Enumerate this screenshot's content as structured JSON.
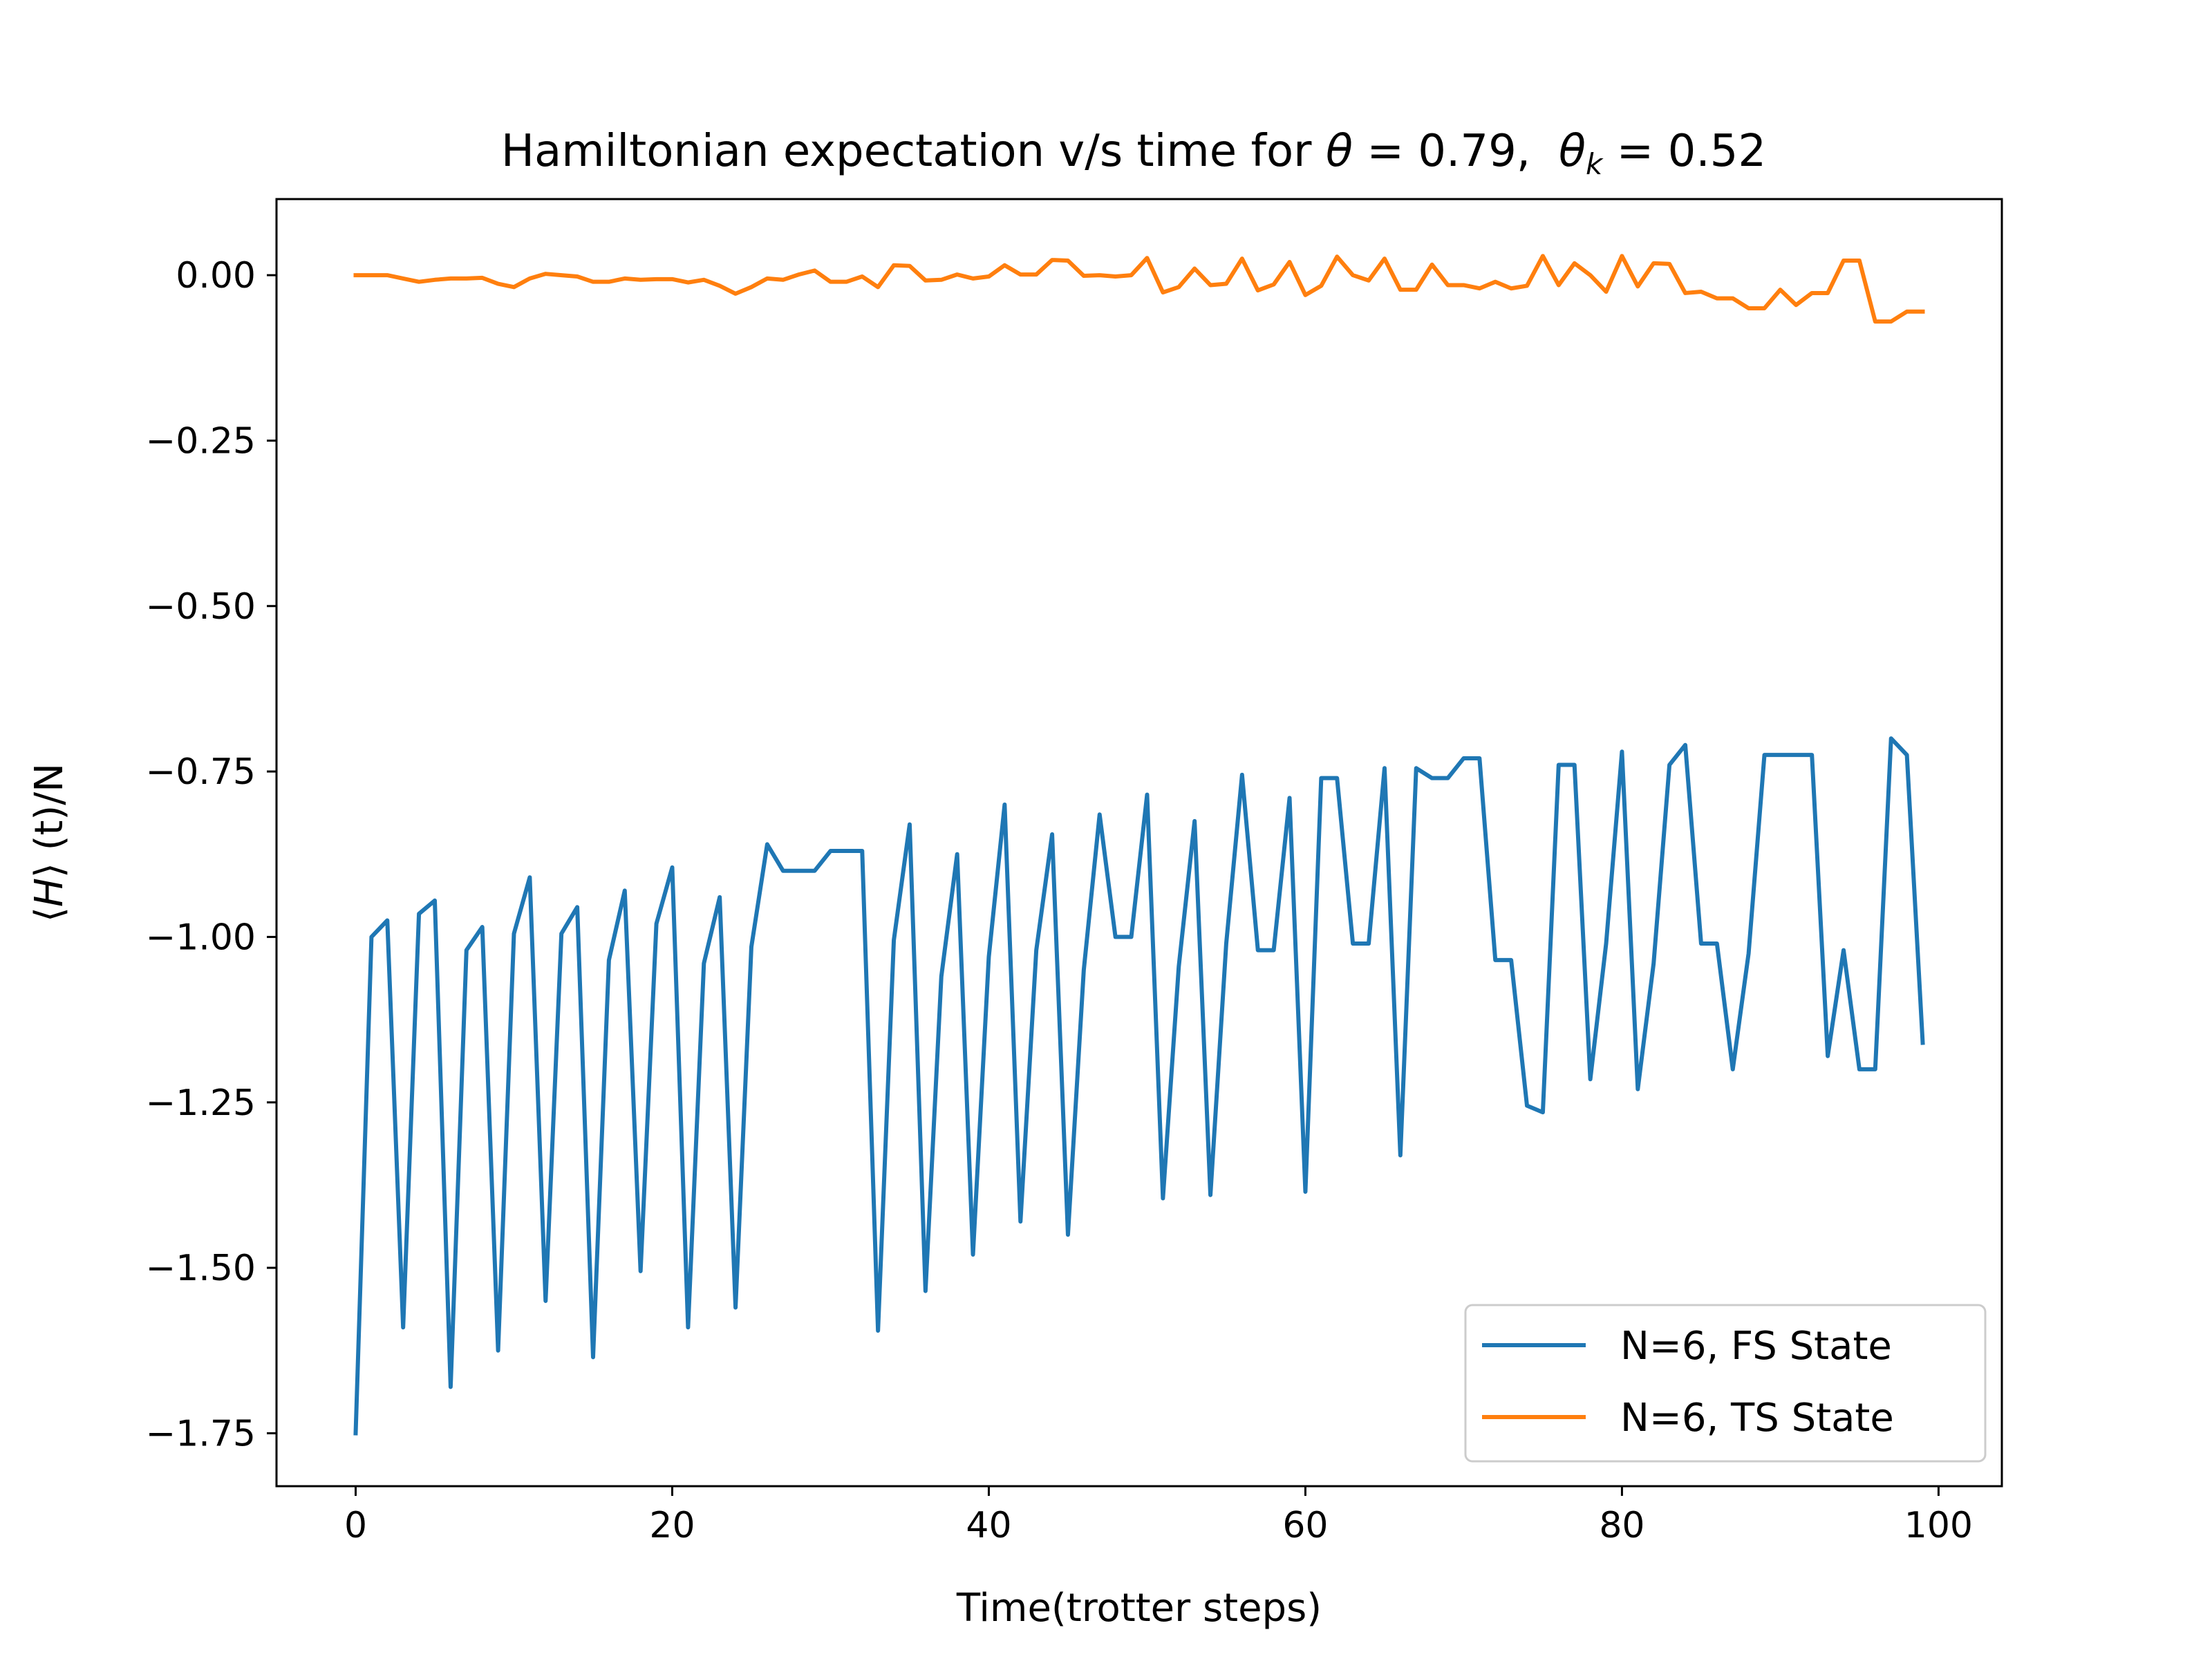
{
  "chart_data": {
    "type": "line",
    "title_parts": {
      "prefix": "Hamiltonian expectation v/s time for ",
      "theta_symbol": "θ",
      "equals": " = ",
      "theta_value": "0.79,",
      "thetak_symbol": "θ",
      "thetak_sub": "k",
      "thetak_value": "0.52"
    },
    "xlabel": "Time(trotter steps)",
    "ylabel": "⟨H⟩ (t)/N",
    "ylabel_parts": {
      "open": "⟨",
      "symbol": "H",
      "close": "⟩",
      "rest": " (t)/N"
    },
    "xlim": [
      -5,
      104
    ],
    "ylim": [
      -1.83,
      0.115
    ],
    "x_ticks": [
      0,
      20,
      40,
      60,
      80,
      100
    ],
    "x_tick_labels": [
      "0",
      "20",
      "40",
      "60",
      "80",
      "100"
    ],
    "y_ticks": [
      0.0,
      -0.25,
      -0.5,
      -0.75,
      -1.0,
      -1.25,
      -1.5,
      -1.75
    ],
    "y_tick_labels": [
      "0.00",
      "−0.25",
      "−0.50",
      "−0.75",
      "−1.00",
      "−1.25",
      "−1.50",
      "−1.75"
    ],
    "grid": false,
    "legend_position": "lower-right",
    "series": [
      {
        "name": "N=6, FS State",
        "color": "#1f77b4",
        "x_start": 0,
        "x_step": 1,
        "values": [
          -1.75,
          -1.0,
          -0.975,
          -1.59,
          -0.965,
          -0.945,
          -1.68,
          -1.02,
          -0.985,
          -1.625,
          -0.995,
          -0.91,
          -1.55,
          -0.995,
          -0.955,
          -1.635,
          -1.035,
          -0.93,
          -1.505,
          -0.98,
          -0.895,
          -1.59,
          -1.04,
          -0.94,
          -1.56,
          -1.015,
          -0.86,
          -0.9,
          -0.9,
          -0.9,
          -0.87,
          -0.87,
          -0.87,
          -1.595,
          -1.005,
          -0.83,
          -1.535,
          -1.06,
          -0.875,
          -1.48,
          -1.03,
          -0.8,
          -1.43,
          -1.02,
          -0.845,
          -1.45,
          -1.05,
          -0.815,
          -1.0,
          -1.0,
          -0.785,
          -1.395,
          -1.045,
          -0.825,
          -1.39,
          -1.01,
          -0.755,
          -1.02,
          -1.02,
          -0.79,
          -1.385,
          -0.76,
          -0.76,
          -1.01,
          -1.01,
          -0.745,
          -1.33,
          -0.745,
          -0.76,
          -0.76,
          -0.73,
          -0.73,
          -1.035,
          -1.035,
          -1.255,
          -1.265,
          -0.74,
          -0.74,
          -1.215,
          -1.01,
          -0.72,
          -1.23,
          -1.04,
          -0.74,
          -0.71,
          -1.01,
          -1.01,
          -1.2,
          -1.025,
          -0.725,
          -0.725,
          -0.725,
          -0.725,
          -1.18,
          -1.02,
          -1.2,
          -1.2,
          -0.7,
          -0.725,
          -1.16
        ]
      },
      {
        "name": "N=6, TS State",
        "color": "#ff7f0e",
        "x_start": 0,
        "x_step": 1,
        "values": [
          0.0,
          0.0,
          0.0,
          -0.005,
          -0.01,
          -0.007,
          -0.005,
          -0.005,
          -0.004,
          -0.013,
          -0.018,
          -0.005,
          0.002,
          0.0,
          -0.002,
          -0.01,
          -0.01,
          -0.005,
          -0.007,
          -0.006,
          -0.006,
          -0.011,
          -0.007,
          -0.016,
          -0.028,
          -0.018,
          -0.005,
          -0.007,
          0.001,
          0.007,
          -0.01,
          -0.01,
          -0.002,
          -0.018,
          0.015,
          0.014,
          -0.008,
          -0.007,
          0.001,
          -0.005,
          -0.002,
          0.015,
          0.001,
          0.001,
          0.023,
          0.022,
          -0.001,
          0.0,
          -0.002,
          0.0,
          0.026,
          -0.026,
          -0.018,
          0.01,
          -0.015,
          -0.013,
          0.025,
          -0.023,
          -0.014,
          0.02,
          -0.03,
          -0.016,
          0.028,
          0.0,
          -0.008,
          0.025,
          -0.022,
          -0.022,
          0.016,
          -0.015,
          -0.015,
          -0.02,
          -0.01,
          -0.02,
          -0.016,
          0.029,
          -0.015,
          0.018,
          0.0,
          -0.025,
          0.029,
          -0.017,
          0.018,
          0.017,
          -0.027,
          -0.025,
          -0.035,
          -0.035,
          -0.05,
          -0.05,
          -0.022,
          -0.045,
          -0.027,
          -0.027,
          0.022,
          0.022,
          -0.07,
          -0.07,
          -0.055,
          -0.055
        ]
      }
    ]
  }
}
